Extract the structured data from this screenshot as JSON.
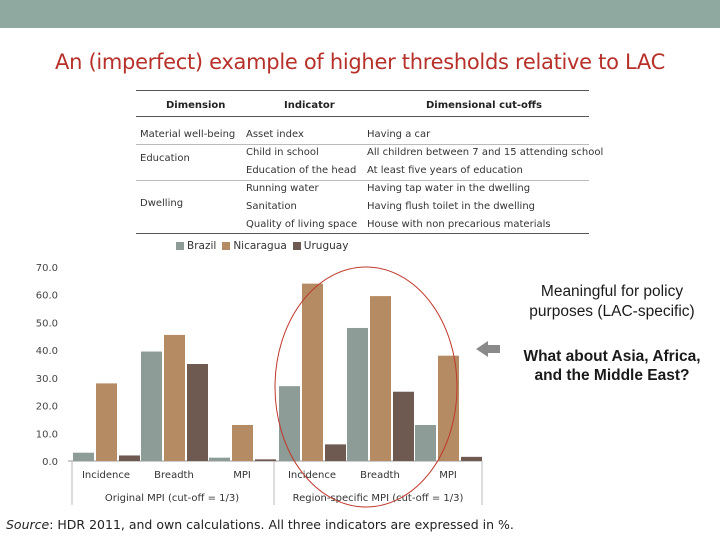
{
  "slide": {
    "title": "An (imperfect) example of higher thresholds relative to LAC",
    "note1": "Meaningful for policy purposes (LAC-specific)",
    "note2": "What about Asia, Africa, and the Middle East?",
    "source_label": "Source",
    "source_text": ": HDR 2011, and own calculations. All three indicators are expressed in %."
  },
  "table": {
    "headers": {
      "dimension": "Dimension",
      "indicator": "Indicator",
      "cutoff": "Dimensional cut-offs"
    },
    "rows": [
      {
        "dimension": "Material well-being",
        "indicator": "Asset index",
        "cutoff": "Having a car"
      },
      {
        "dimension": "Education",
        "indicator": "Child in school",
        "cutoff": "All children between 7 and 15 attending school"
      },
      {
        "dimension": "",
        "indicator": "Education of the head",
        "cutoff": "At least five years of education"
      },
      {
        "dimension": "Dwelling",
        "indicator": "Running water",
        "cutoff": "Having tap water in the dwelling"
      },
      {
        "dimension": "",
        "indicator": "Sanitation",
        "cutoff": "Having flush toilet in the dwelling"
      },
      {
        "dimension": "",
        "indicator": "Quality of living space",
        "cutoff": "House with non precarious materials"
      }
    ]
  },
  "colors": {
    "brazil": "#8d9c96",
    "nicaragua": "#b48b62",
    "uruguay": "#6f5a52",
    "title": "#b7312a",
    "circle": "#c0392b",
    "topbar": "#8fa9a0"
  },
  "chart_data": {
    "type": "bar",
    "categories": [
      "Incidence",
      "Breadth",
      "MPI",
      "Incidence",
      "Breadth",
      "MPI"
    ],
    "groups": [
      {
        "label": "Original MPI (cut-off = 1/3)",
        "span": [
          0,
          2
        ]
      },
      {
        "label": "Region-specific MPI (cut-off = 1/3)",
        "span": [
          3,
          5
        ]
      }
    ],
    "series": [
      {
        "name": "Brazil",
        "values": [
          3,
          39.5,
          1.2,
          27,
          48,
          13
        ]
      },
      {
        "name": "Nicaragua",
        "values": [
          28,
          45.5,
          13,
          64,
          59.5,
          38
        ]
      },
      {
        "name": "Uruguay",
        "values": [
          2,
          35,
          0.6,
          6,
          25,
          1.5
        ]
      }
    ],
    "yticks": [
      "0.0",
      "10.0",
      "20.0",
      "30.0",
      "40.0",
      "50.0",
      "60.0",
      "70.0"
    ],
    "ylim": [
      0,
      70
    ],
    "grid": false,
    "legend_placement": "top",
    "highlight": "circle around region-specific Incidence and Breadth"
  }
}
